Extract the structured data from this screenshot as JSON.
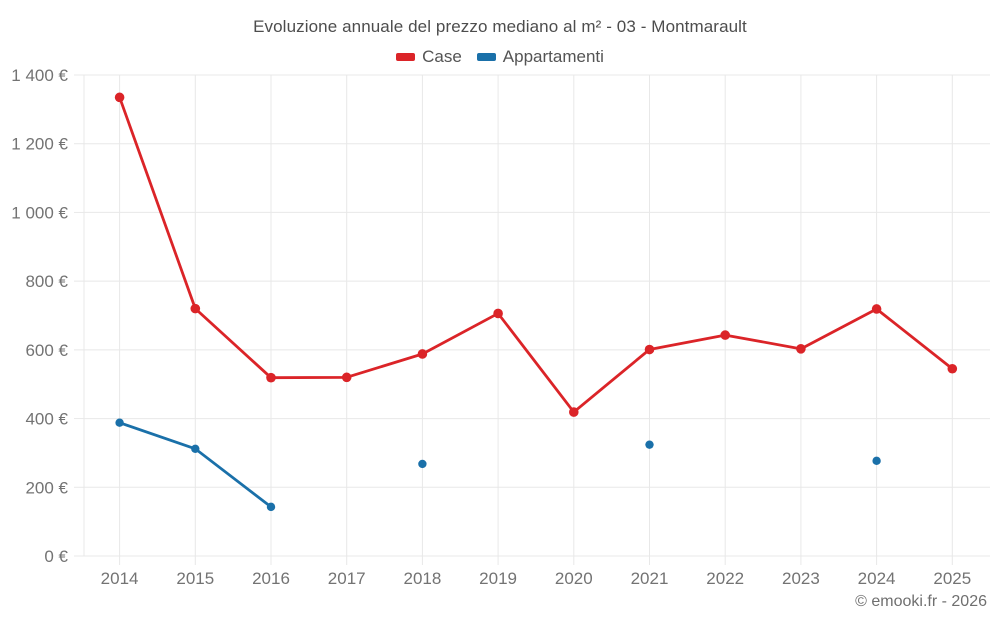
{
  "chart_data": {
    "type": "line",
    "title": "Evoluzione annuale del prezzo mediano al m² - 03 - Montmarault",
    "categories": [
      "2014",
      "2015",
      "2016",
      "2017",
      "2018",
      "2019",
      "2020",
      "2021",
      "2022",
      "2023",
      "2024",
      "2025"
    ],
    "series": [
      {
        "name": "Case",
        "color": "#db2428",
        "values": [
          1335,
          720,
          519,
          520,
          588,
          706,
          419,
          601,
          643,
          603,
          719,
          545
        ]
      },
      {
        "name": "Appartamenti",
        "color": "#1a70a9",
        "values": [
          388,
          312,
          143,
          null,
          268,
          null,
          null,
          324,
          null,
          null,
          277,
          null
        ]
      }
    ],
    "xlabel": "",
    "ylabel": "",
    "ylim": [
      0,
      1400
    ],
    "ytick_step": 200,
    "ytick_labels": [
      "0 €",
      "200 €",
      "400 €",
      "600 €",
      "800 €",
      "1 000 €",
      "1 200 €",
      "1 400 €"
    ],
    "grid": true,
    "legend_position": "top",
    "currency_suffix": " €"
  },
  "footer": {
    "credit": "© emooki.fr - 2026"
  },
  "colors": {
    "grid": "#e8e8e8",
    "axis_text": "#737373",
    "title_text": "#4d4d4d",
    "background": "#ffffff"
  }
}
